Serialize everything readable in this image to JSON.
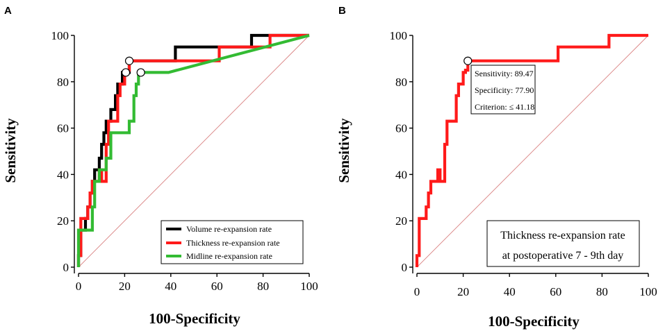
{
  "colors": {
    "volume": "#000000",
    "thickness": "#ff1a1a",
    "midline": "#33bb33",
    "diagonal": "#d98080",
    "axis": "#000000"
  },
  "chart_data": [
    {
      "type": "line",
      "panel_label": "A",
      "xlabel": "100-Specificity",
      "ylabel": "Sensitivity",
      "xlim": [
        0,
        100
      ],
      "ylim": [
        0,
        100
      ],
      "xticks": [
        "0",
        "20",
        "40",
        "60",
        "80",
        "100"
      ],
      "yticks": [
        "0",
        "20",
        "40",
        "60",
        "80",
        "100"
      ],
      "grid": false,
      "legend_position": "bottom-right",
      "reference_line": [
        [
          0,
          0
        ],
        [
          100,
          100
        ]
      ],
      "series": [
        {
          "name": "Volume re-expansion rate",
          "color_key": "volume",
          "points": [
            [
              0,
              0
            ],
            [
              0,
              5
            ],
            [
              1,
              5
            ],
            [
              1,
              16
            ],
            [
              3,
              16
            ],
            [
              3,
              21
            ],
            [
              4,
              21
            ],
            [
              4,
              26
            ],
            [
              5,
              26
            ],
            [
              5,
              32
            ],
            [
              6,
              32
            ],
            [
              6,
              37
            ],
            [
              7,
              37
            ],
            [
              7,
              42
            ],
            [
              9,
              42
            ],
            [
              9,
              47
            ],
            [
              10,
              47
            ],
            [
              10,
              53
            ],
            [
              11,
              53
            ],
            [
              11,
              58
            ],
            [
              12,
              58
            ],
            [
              12,
              63
            ],
            [
              14,
              63
            ],
            [
              14,
              68
            ],
            [
              16,
              68
            ],
            [
              16,
              74
            ],
            [
              17,
              74
            ],
            [
              17,
              79
            ],
            [
              19,
              79
            ],
            [
              19,
              84
            ],
            [
              22,
              84
            ],
            [
              22,
              89
            ],
            [
              34,
              89
            ],
            [
              34,
              89
            ],
            [
              42,
              89
            ],
            [
              42,
              95
            ],
            [
              75,
              95
            ],
            [
              75,
              100
            ],
            [
              100,
              100
            ]
          ]
        },
        {
          "name": "Thickness re-expansion rate",
          "color_key": "thickness",
          "points": [
            [
              0,
              0
            ],
            [
              0,
              5
            ],
            [
              1,
              5
            ],
            [
              1,
              21
            ],
            [
              4,
              21
            ],
            [
              4,
              26
            ],
            [
              5,
              26
            ],
            [
              5,
              32
            ],
            [
              6,
              32
            ],
            [
              6,
              37
            ],
            [
              9,
              37
            ],
            [
              9,
              42
            ],
            [
              10,
              42
            ],
            [
              10,
              37
            ],
            [
              12,
              37
            ],
            [
              12,
              53
            ],
            [
              13,
              53
            ],
            [
              13,
              63
            ],
            [
              15,
              63
            ],
            [
              15,
              63
            ],
            [
              17,
              63
            ],
            [
              17,
              74
            ],
            [
              18,
              74
            ],
            [
              18,
              79
            ],
            [
              20,
              79
            ],
            [
              20,
              84
            ],
            [
              21,
              84
            ],
            [
              21,
              85
            ],
            [
              22,
              85
            ],
            [
              22,
              89
            ],
            [
              61,
              89
            ],
            [
              61,
              95
            ],
            [
              83,
              95
            ],
            [
              83,
              100
            ],
            [
              100,
              100
            ]
          ]
        },
        {
          "name": "Midline re-expansion rate",
          "color_key": "midline",
          "points": [
            [
              0,
              0
            ],
            [
              0,
              16
            ],
            [
              6,
              16
            ],
            [
              6,
              26
            ],
            [
              7,
              26
            ],
            [
              7,
              37
            ],
            [
              9,
              37
            ],
            [
              9,
              42
            ],
            [
              12,
              42
            ],
            [
              12,
              47
            ],
            [
              14,
              47
            ],
            [
              14,
              58
            ],
            [
              22,
              58
            ],
            [
              22,
              63
            ],
            [
              24,
              63
            ],
            [
              24,
              74
            ],
            [
              25,
              74
            ],
            [
              25,
              79
            ],
            [
              26,
              79
            ],
            [
              26,
              84
            ],
            [
              39,
              84
            ],
            [
              100,
              100
            ]
          ]
        }
      ],
      "markers": [
        {
          "x": 22,
          "y": 89,
          "series": "Thickness re-expansion rate"
        },
        {
          "x": 20.5,
          "y": 84,
          "series": "Volume re-expansion rate"
        },
        {
          "x": 27,
          "y": 84,
          "series": "Midline re-expansion rate"
        }
      ]
    },
    {
      "type": "line",
      "panel_label": "B",
      "xlabel": "100-Specificity",
      "ylabel": "Sensitivity",
      "xlim": [
        0,
        100
      ],
      "ylim": [
        0,
        100
      ],
      "xticks": [
        "0",
        "20",
        "40",
        "60",
        "80",
        "100"
      ],
      "yticks": [
        "0",
        "20",
        "40",
        "60",
        "80",
        "100"
      ],
      "grid": false,
      "legend_position": "bottom-right",
      "reference_line": [
        [
          0,
          0
        ],
        [
          100,
          100
        ]
      ],
      "series": [
        {
          "name": "Thickness re-expansion rate at postoperative 7 - 9th day",
          "color_key": "thickness",
          "points": [
            [
              0,
              0
            ],
            [
              0,
              5
            ],
            [
              1,
              5
            ],
            [
              1,
              21
            ],
            [
              4,
              21
            ],
            [
              4,
              26
            ],
            [
              5,
              26
            ],
            [
              5,
              32
            ],
            [
              6,
              32
            ],
            [
              6,
              37
            ],
            [
              9,
              37
            ],
            [
              9,
              42
            ],
            [
              10,
              42
            ],
            [
              10,
              37
            ],
            [
              12,
              37
            ],
            [
              12,
              53
            ],
            [
              13,
              53
            ],
            [
              13,
              63
            ],
            [
              15,
              63
            ],
            [
              15,
              63
            ],
            [
              17,
              63
            ],
            [
              17,
              74
            ],
            [
              18,
              74
            ],
            [
              18,
              79
            ],
            [
              20,
              79
            ],
            [
              20,
              84
            ],
            [
              21,
              84
            ],
            [
              21,
              85
            ],
            [
              22,
              85
            ],
            [
              22,
              89
            ],
            [
              61,
              89
            ],
            [
              61,
              95
            ],
            [
              83,
              95
            ],
            [
              83,
              100
            ],
            [
              100,
              100
            ]
          ]
        }
      ],
      "markers": [
        {
          "x": 22,
          "y": 89,
          "series": "Thickness re-expansion rate at postoperative 7 - 9th day"
        }
      ],
      "annotation": {
        "sensitivity": "Sensitivity: 89.47",
        "specificity": "Specificity: 77.90",
        "criterion": "Criterion: ≤ 41.18"
      },
      "legend_lines": [
        "Thickness re-expansion rate",
        "at postoperative 7 - 9th day"
      ]
    }
  ]
}
